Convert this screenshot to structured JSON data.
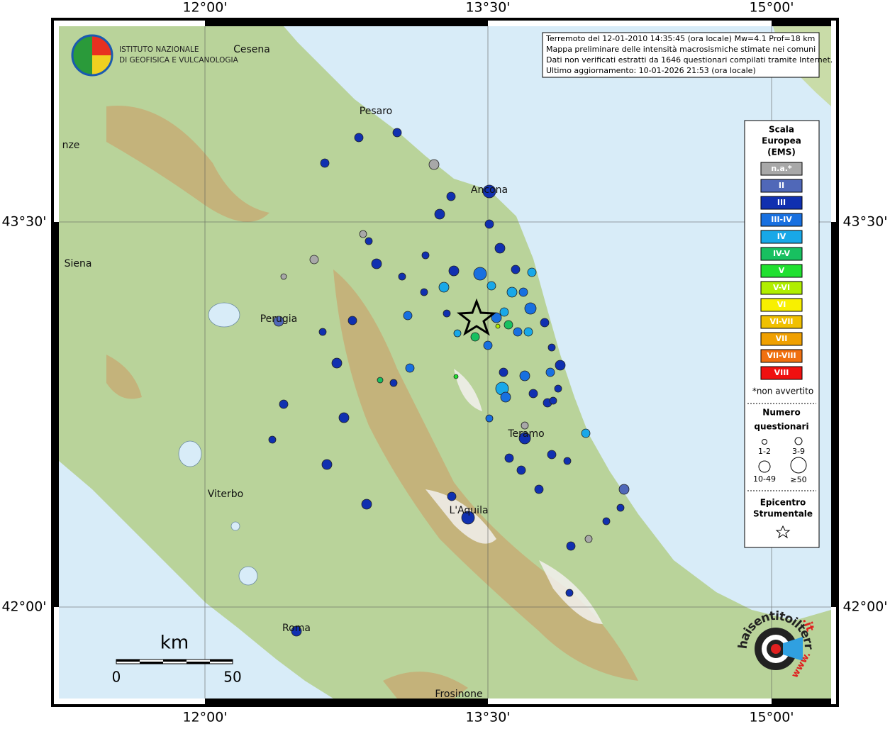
{
  "axes": {
    "longitude_labels": [
      "12°00'",
      "13°30'",
      "15°00'"
    ],
    "latitude_labels": [
      "43°30'",
      "42°00'"
    ]
  },
  "logo": {
    "line1": "ISTITUTO NAZIONALE",
    "line2": "DI GEOFISICA E VULCANOLOGIA"
  },
  "info_box": {
    "lines": [
      "Terremoto del 12-01-2010 14:35:45 (ora locale) Mw=4.1 Prof=18 km",
      "Mappa preliminare delle intensità macrosismiche stimate nei comuni",
      "Dati non verificati estratti da 1646 questionari compilati tramite Internet.",
      "Ultimo aggiornamento: 10-01-2026 21:53 (ora locale)"
    ]
  },
  "cities": [
    "Cesena",
    "Pesaro",
    "nze",
    "Ancona",
    "Siena",
    "Perugia",
    "Teramo",
    "Viterbo",
    "L'Aquila",
    "Roma",
    "Frosinone"
  ],
  "legend": {
    "title": [
      "Scala",
      "Europea",
      "(EMS)"
    ],
    "classes": [
      {
        "label": "n.a.*",
        "color": "#a8a8a8"
      },
      {
        "label": "II",
        "color": "#5068b8"
      },
      {
        "label": "III",
        "color": "#1030b0"
      },
      {
        "label": "III-IV",
        "color": "#1870e0"
      },
      {
        "label": "IV",
        "color": "#18a8e8"
      },
      {
        "label": "IV-V",
        "color": "#18c060"
      },
      {
        "label": "V",
        "color": "#20e030"
      },
      {
        "label": "V-VI",
        "color": "#b0ee00"
      },
      {
        "label": "VI",
        "color": "#f8f000"
      },
      {
        "label": "VI-VII",
        "color": "#f0c000"
      },
      {
        "label": "VII",
        "color": "#f0a000"
      },
      {
        "label": "VII-VIII",
        "color": "#f07010"
      },
      {
        "label": "VIII",
        "color": "#f01010"
      }
    ],
    "note": "*non avvertito",
    "size_title": [
      "Numero",
      "questionari"
    ],
    "sizes": [
      "1-2",
      "3-9",
      "10-49",
      "≥50"
    ],
    "epicenter_title": [
      "Epicentro",
      "Strumentale"
    ]
  },
  "scale_bar": {
    "unit": "km",
    "labels": [
      "0",
      "50"
    ]
  },
  "badge": {
    "text": "haisentitoilterremoto",
    "prefix": "www.",
    "suffix": ".it"
  }
}
